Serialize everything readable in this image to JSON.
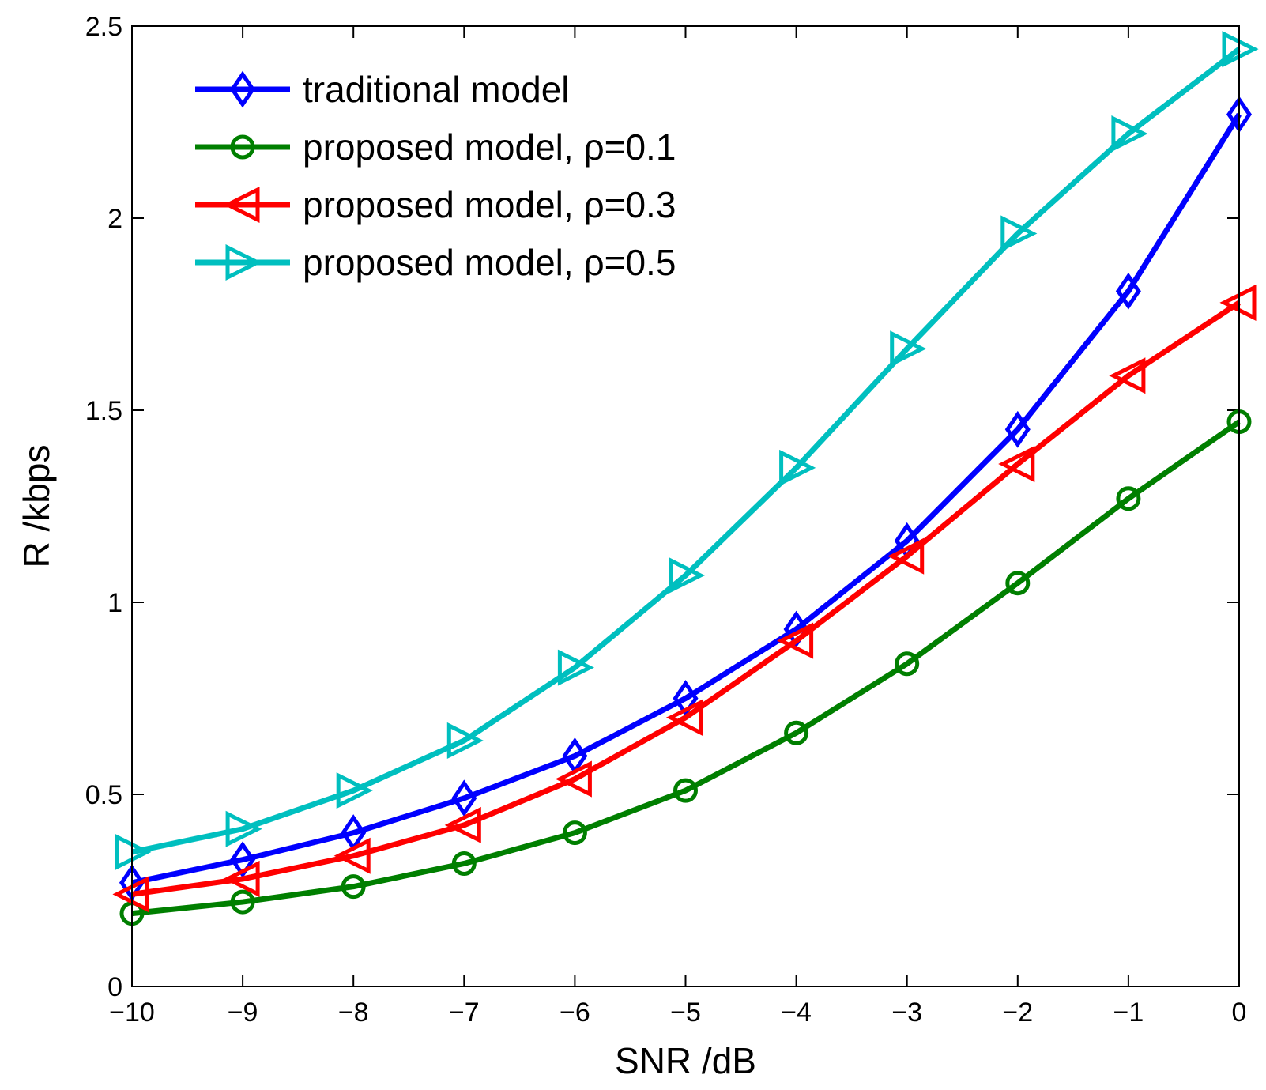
{
  "chart_data": {
    "type": "line",
    "title": "",
    "xlabel": "SNR /dB",
    "ylabel": "R /kbps",
    "xlim": [
      -10,
      0
    ],
    "ylim": [
      0,
      2.5
    ],
    "grid": false,
    "legend_position": "top-left",
    "x": [
      -10,
      -9,
      -8,
      -7,
      -6,
      -5,
      -4,
      -3,
      -2,
      -1,
      0
    ],
    "x_tick_labels": [
      "−10",
      "−9",
      "−8",
      "−7",
      "−6",
      "−5",
      "−4",
      "−3",
      "−2",
      "−1",
      "0"
    ],
    "y_ticks": [
      0,
      0.5,
      1,
      1.5,
      2,
      2.5
    ],
    "y_tick_labels": [
      "0",
      "0.5",
      "1",
      "1.5",
      "2",
      "2.5"
    ],
    "series": [
      {
        "name": "traditional model",
        "color": "#0000ff",
        "marker": "diamond",
        "values": [
          0.27,
          0.33,
          0.4,
          0.49,
          0.6,
          0.75,
          0.93,
          1.16,
          1.45,
          1.81,
          2.27
        ]
      },
      {
        "name": "proposed model, ρ=0.1",
        "color": "#007f00",
        "marker": "circle",
        "values": [
          0.19,
          0.22,
          0.26,
          0.32,
          0.4,
          0.51,
          0.66,
          0.84,
          1.05,
          1.27,
          1.47
        ]
      },
      {
        "name": "proposed model, ρ=0.3",
        "color": "#ff0000",
        "marker": "triangle-left",
        "values": [
          0.24,
          0.28,
          0.34,
          0.42,
          0.54,
          0.7,
          0.9,
          1.12,
          1.36,
          1.59,
          1.78
        ]
      },
      {
        "name": "proposed model, ρ=0.5",
        "color": "#00bfbf",
        "marker": "triangle-right",
        "values": [
          0.35,
          0.41,
          0.51,
          0.64,
          0.83,
          1.07,
          1.35,
          1.66,
          1.96,
          2.22,
          2.44
        ]
      }
    ]
  }
}
